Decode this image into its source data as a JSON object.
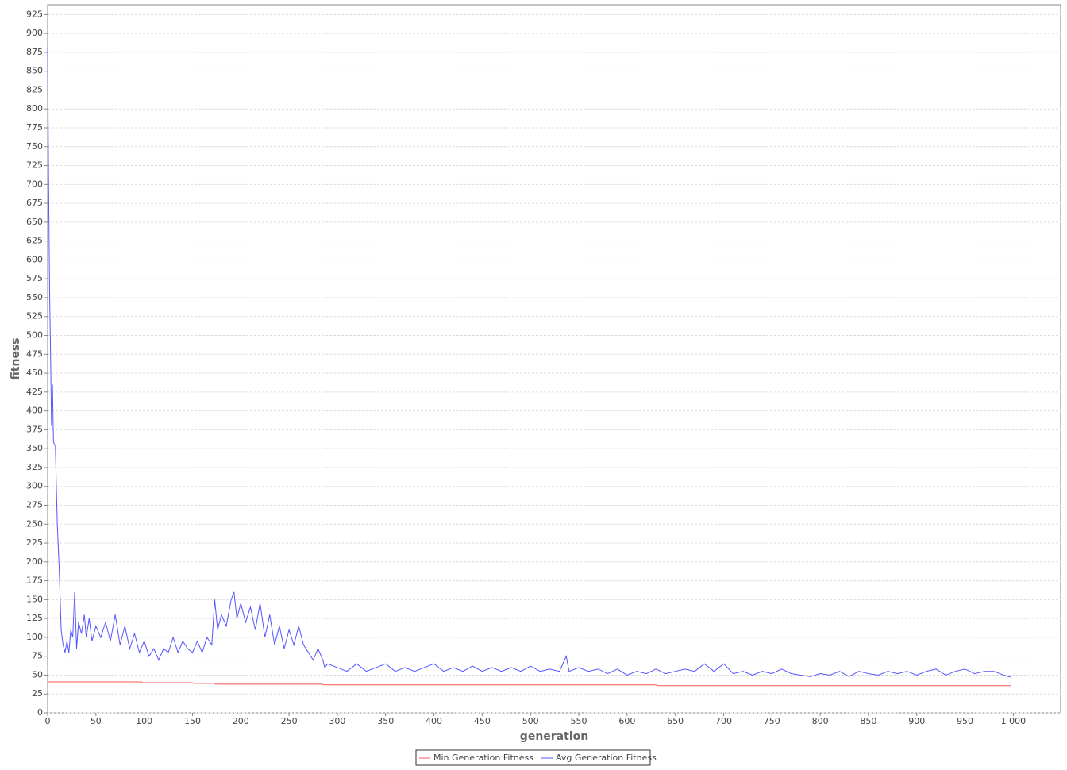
{
  "chart_data": {
    "type": "line",
    "x_label": "generation",
    "y_label": "fitness",
    "xlim": [
      0,
      1049
    ],
    "ylim": [
      0,
      938
    ],
    "xticks": [
      0,
      50,
      100,
      150,
      200,
      250,
      300,
      350,
      400,
      450,
      500,
      550,
      600,
      650,
      700,
      750,
      800,
      850,
      900,
      950,
      {
        "value": 1000,
        "label": "1 000"
      }
    ],
    "yticks": [
      0,
      25,
      50,
      75,
      100,
      125,
      150,
      175,
      200,
      225,
      250,
      275,
      300,
      325,
      350,
      375,
      400,
      425,
      450,
      475,
      500,
      525,
      550,
      575,
      600,
      625,
      650,
      675,
      700,
      725,
      750,
      775,
      800,
      825,
      850,
      875,
      900,
      925
    ],
    "grid": true,
    "legend": "bottom",
    "series": [
      {
        "name": "Min Generation Fitness",
        "color": "#ff5555",
        "x": [
          0,
          97,
          98,
          150,
          151,
          173,
          174,
          285,
          286,
          630,
          631,
          998
        ],
        "values": [
          41,
          41,
          40,
          40,
          39,
          39,
          38,
          38,
          37,
          37,
          36,
          36
        ]
      },
      {
        "name": "Avg Generation Fitness",
        "color": "#5555ff",
        "x": [
          0,
          1,
          2,
          3,
          4,
          5,
          6,
          7,
          8,
          9,
          10,
          12,
          14,
          16,
          18,
          20,
          22,
          24,
          26,
          28,
          30,
          32,
          35,
          38,
          40,
          43,
          46,
          50,
          55,
          60,
          65,
          70,
          75,
          80,
          85,
          90,
          95,
          100,
          105,
          110,
          115,
          120,
          125,
          130,
          135,
          140,
          145,
          150,
          155,
          160,
          165,
          170,
          173,
          176,
          180,
          185,
          190,
          193,
          196,
          200,
          205,
          210,
          215,
          220,
          225,
          230,
          235,
          240,
          245,
          250,
          255,
          260,
          265,
          270,
          275,
          280,
          285,
          287,
          290,
          300,
          310,
          320,
          330,
          340,
          350,
          360,
          370,
          380,
          390,
          400,
          410,
          420,
          430,
          440,
          450,
          460,
          470,
          480,
          490,
          500,
          510,
          520,
          530,
          537,
          540,
          550,
          560,
          570,
          580,
          590,
          600,
          610,
          620,
          630,
          640,
          650,
          660,
          670,
          680,
          690,
          700,
          710,
          720,
          730,
          740,
          750,
          760,
          770,
          780,
          790,
          800,
          810,
          820,
          830,
          840,
          850,
          860,
          870,
          880,
          890,
          900,
          910,
          920,
          930,
          940,
          950,
          960,
          970,
          980,
          990,
          998
        ],
        "values": [
          880,
          700,
          560,
          480,
          380,
          435,
          360,
          355,
          355,
          300,
          250,
          190,
          110,
          90,
          80,
          95,
          80,
          110,
          100,
          160,
          85,
          120,
          105,
          130,
          100,
          125,
          95,
          115,
          100,
          120,
          95,
          130,
          90,
          115,
          85,
          105,
          80,
          95,
          75,
          85,
          70,
          85,
          80,
          100,
          80,
          95,
          85,
          80,
          95,
          80,
          100,
          90,
          150,
          110,
          130,
          115,
          150,
          160,
          125,
          145,
          120,
          140,
          110,
          145,
          100,
          130,
          90,
          115,
          85,
          110,
          90,
          115,
          90,
          80,
          70,
          85,
          70,
          60,
          65,
          60,
          55,
          65,
          55,
          60,
          65,
          55,
          60,
          55,
          60,
          65,
          55,
          60,
          55,
          62,
          55,
          60,
          55,
          60,
          55,
          62,
          55,
          58,
          55,
          75,
          55,
          60,
          55,
          58,
          52,
          58,
          50,
          55,
          52,
          58,
          52,
          55,
          58,
          55,
          65,
          55,
          65,
          52,
          55,
          50,
          55,
          52,
          58,
          52,
          50,
          48,
          52,
          50,
          55,
          48,
          55,
          52,
          50,
          55,
          52,
          55,
          50,
          55,
          58,
          50,
          55,
          58,
          52,
          55,
          55,
          50,
          47
        ]
      }
    ]
  }
}
